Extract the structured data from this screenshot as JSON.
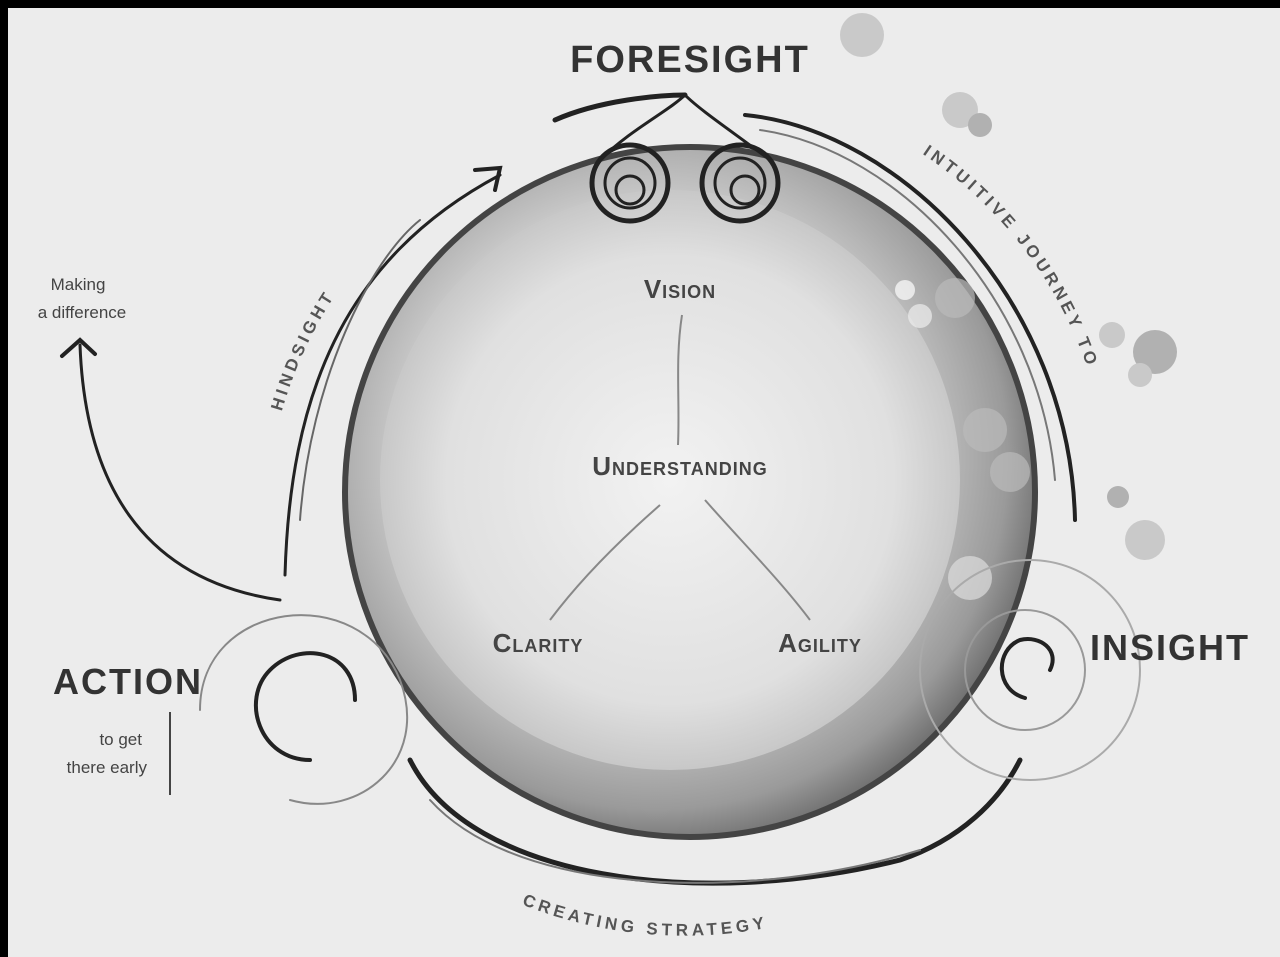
{
  "title": "FORESIGHT",
  "nodes": [
    {
      "label": "FORESIGHT"
    },
    {
      "label": "INSIGHT"
    },
    {
      "label": "ACTION"
    }
  ],
  "notes": {
    "action": [
      "to get",
      "there early"
    ],
    "making": [
      "Making",
      "a difference"
    ]
  },
  "arcs": [
    "HINDSIGHT",
    "INTUITIVE JOURNEY TO",
    "CREATING STRATEGY"
  ],
  "core": [
    "Vision",
    "Understanding",
    "Clarity",
    "Agility"
  ]
}
